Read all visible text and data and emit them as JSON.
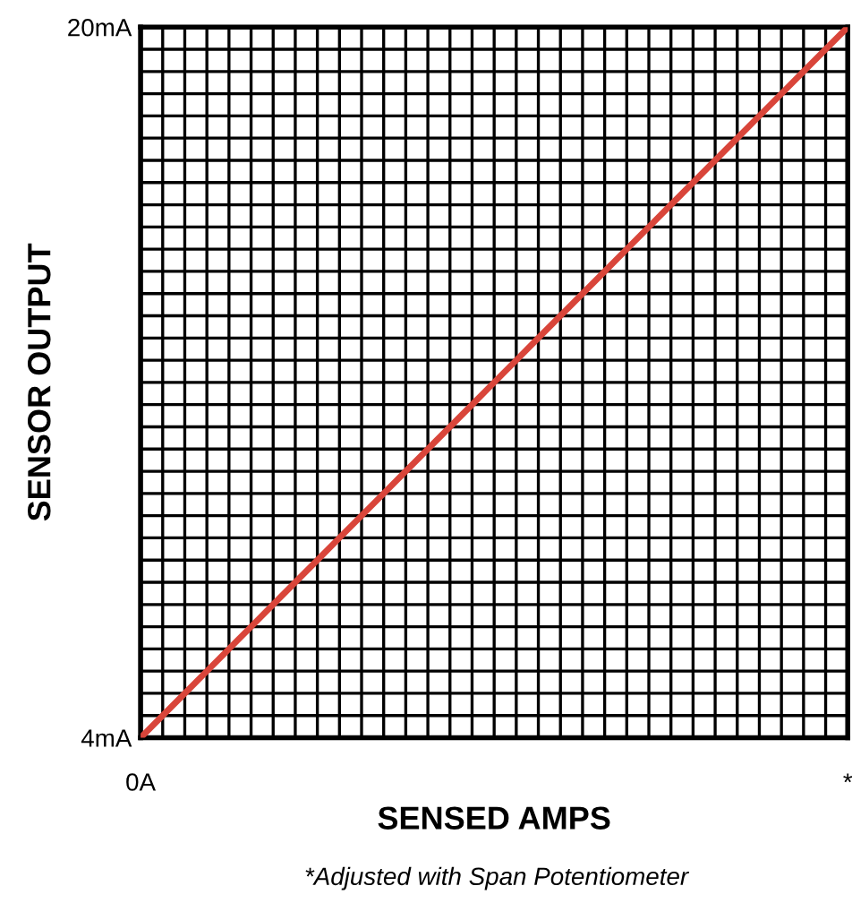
{
  "chart_data": {
    "type": "line",
    "xlabel": "SENSED AMPS",
    "ylabel": "SENSOR OUTPUT",
    "annotations": [
      "*Adjusted with Span Potentiometer"
    ],
    "categories": [
      "0A",
      null,
      null,
      null,
      null,
      null,
      null,
      null,
      null,
      null,
      null,
      null,
      null,
      null,
      null,
      null,
      null,
      null,
      null,
      null,
      null,
      null,
      null,
      null,
      null,
      null,
      null,
      null,
      null,
      null,
      null,
      null,
      "*"
    ],
    "series": [
      {
        "color": "#d9453a",
        "values": [
          4,
          4.5,
          5,
          5.5,
          6,
          6.5,
          7,
          7.5,
          8,
          8.5,
          9,
          9.5,
          10,
          10.5,
          11,
          11.5,
          12,
          12.5,
          13,
          13.5,
          14,
          14.5,
          15,
          15.5,
          16,
          16.5,
          17,
          17.5,
          18,
          18.5,
          19,
          19.5,
          20
        ]
      }
    ],
    "ylim": [
      4,
      20
    ],
    "yticks": [
      {
        "value": 4,
        "label": "4mA"
      },
      {
        "value": 4.5,
        "label": null
      },
      {
        "value": 5,
        "label": null
      },
      {
        "value": 5.5,
        "label": null
      },
      {
        "value": 6,
        "label": null
      },
      {
        "value": 6.5,
        "label": null
      },
      {
        "value": 7,
        "label": null
      },
      {
        "value": 7.5,
        "label": null
      },
      {
        "value": 8,
        "label": null
      },
      {
        "value": 8.5,
        "label": null
      },
      {
        "value": 9,
        "label": null
      },
      {
        "value": 9.5,
        "label": null
      },
      {
        "value": 10,
        "label": null
      },
      {
        "value": 10.5,
        "label": null
      },
      {
        "value": 11,
        "label": null
      },
      {
        "value": 11.5,
        "label": null
      },
      {
        "value": 12,
        "label": null
      },
      {
        "value": 12.5,
        "label": null
      },
      {
        "value": 13,
        "label": null
      },
      {
        "value": 13.5,
        "label": null
      },
      {
        "value": 14,
        "label": null
      },
      {
        "value": 14.5,
        "label": null
      },
      {
        "value": 15,
        "label": null
      },
      {
        "value": 15.5,
        "label": null
      },
      {
        "value": 16,
        "label": null
      },
      {
        "value": 16.5,
        "label": null
      },
      {
        "value": 17,
        "label": null
      },
      {
        "value": 17.5,
        "label": null
      },
      {
        "value": 18,
        "label": null
      },
      {
        "value": 18.5,
        "label": null
      },
      {
        "value": 19,
        "label": null
      },
      {
        "value": 19.5,
        "label": null
      },
      {
        "value": 20,
        "label": "20mA"
      }
    ],
    "grid": true,
    "marker": "none",
    "line_style": "solid",
    "legend": false
  }
}
